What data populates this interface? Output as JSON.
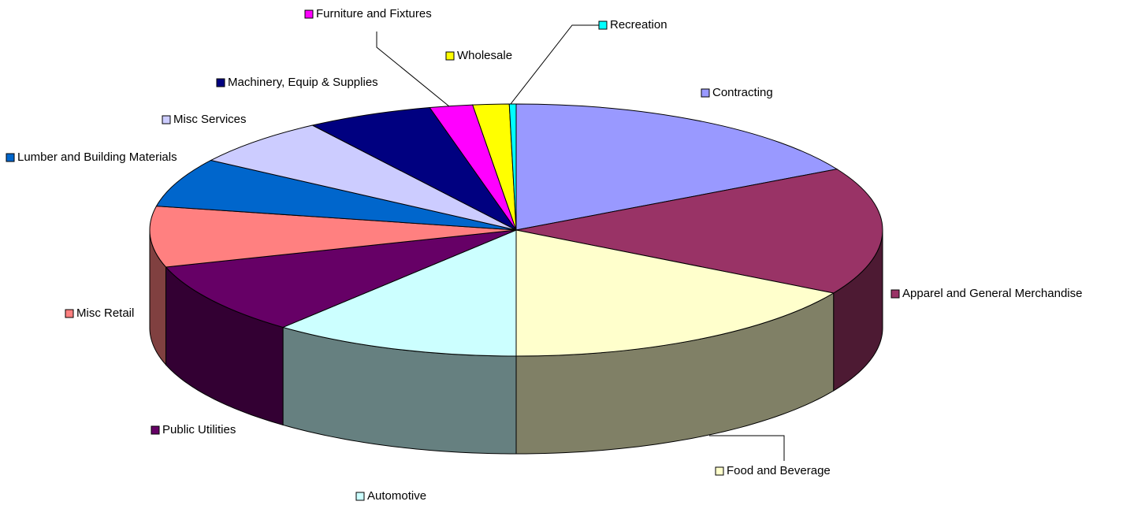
{
  "chart_data": {
    "type": "pie3d",
    "categories": [
      "Contracting",
      "Apparel and General Merchandise",
      "Food and Beverage",
      "Automotive",
      "Public Utilities",
      "Misc Retail",
      "Lumber and Building Materials",
      "Misc Services",
      "Machinery, Equip & Supplies",
      "Furniture and Fixtures",
      "Wholesale",
      "Recreation"
    ],
    "values": [
      17,
      16.4,
      16.7,
      11,
      9.3,
      7.8,
      6.3,
      6.3,
      5.6,
      1.9,
      1.6,
      0.3
    ],
    "colors": [
      "#9999ff",
      "#993366",
      "#ffffcc",
      "#ccffff",
      "#660066",
      "#ff8080",
      "#0066cc",
      "#ccccff",
      "#000080",
      "#ff00ff",
      "#ffff00",
      "#00ffff"
    ],
    "legend": "labels"
  }
}
